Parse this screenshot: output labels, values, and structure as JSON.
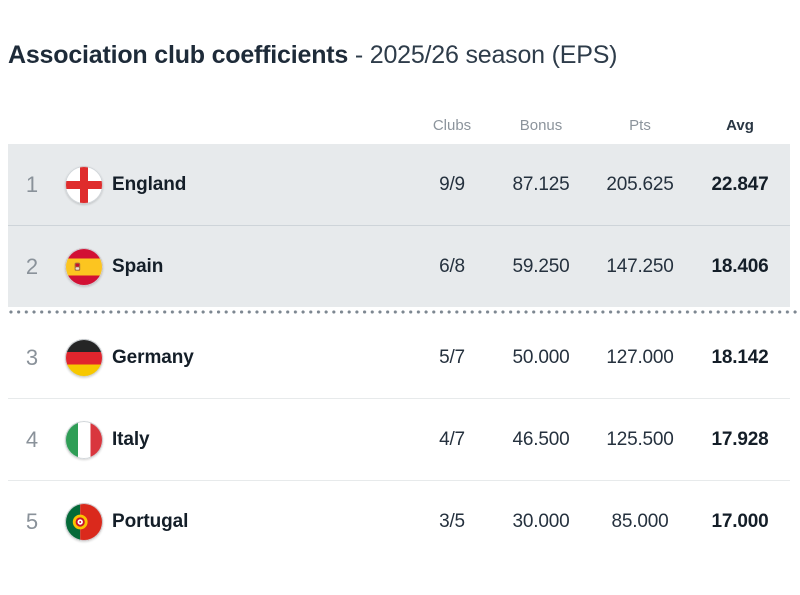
{
  "title": {
    "main": "Association club coefficients",
    "sub": "- 2025/26 season (EPS)"
  },
  "table": {
    "columns": [
      {
        "key": "clubs",
        "label": "Clubs"
      },
      {
        "key": "bonus",
        "label": "Bonus"
      },
      {
        "key": "pts",
        "label": "Pts"
      },
      {
        "key": "avg",
        "label": "Avg"
      }
    ],
    "rows": [
      {
        "rank": "1",
        "country": "England",
        "flag": "england",
        "clubs": "9/9",
        "bonus": "87.125",
        "pts": "205.625",
        "avg": "22.847",
        "highlighted": true
      },
      {
        "rank": "2",
        "country": "Spain",
        "flag": "spain",
        "clubs": "6/8",
        "bonus": "59.250",
        "pts": "147.250",
        "avg": "18.406",
        "highlighted": true
      },
      {
        "rank": "3",
        "country": "Germany",
        "flag": "germany",
        "clubs": "5/7",
        "bonus": "50.000",
        "pts": "127.000",
        "avg": "18.142",
        "highlighted": false
      },
      {
        "rank": "4",
        "country": "Italy",
        "flag": "italy",
        "clubs": "4/7",
        "bonus": "46.500",
        "pts": "125.500",
        "avg": "17.928",
        "highlighted": false
      },
      {
        "rank": "5",
        "country": "Portugal",
        "flag": "portugal",
        "clubs": "3/5",
        "bonus": "30.000",
        "pts": "85.000",
        "avg": "17.000",
        "highlighted": false
      }
    ],
    "cutoff_after_rank": "2"
  },
  "colors": {
    "row_highlight": "#e7eaec",
    "row_separator": "#ced4d9",
    "cutoff_dots": "#7d8791",
    "header_text": "#8c949c",
    "primary_text": "#141e28"
  }
}
